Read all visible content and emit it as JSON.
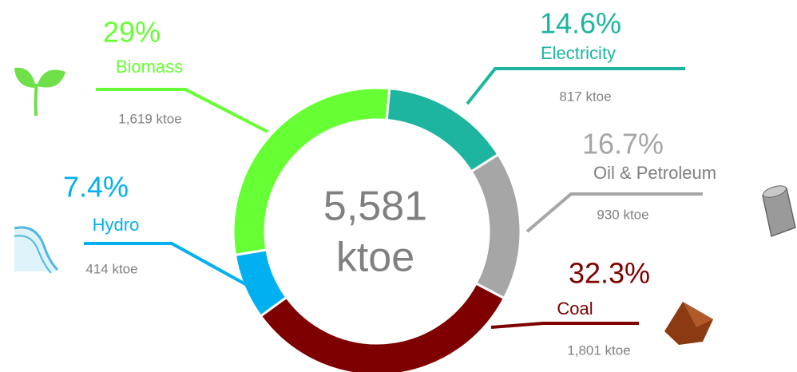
{
  "chart_data": {
    "type": "donut",
    "categories": [
      "Electricity",
      "Oil & Petroleum",
      "Coal",
      "Hydro",
      "Biomass"
    ],
    "values": [
      14.6,
      16.7,
      32.3,
      7.4,
      29
    ],
    "value_labels": [
      "14.6%",
      "16.7%",
      "32.3%",
      "7.4%",
      "29%"
    ],
    "amount_labels": [
      "817 ktoe",
      "930 ktoe",
      "1,801 ktoe",
      "414 ktoe",
      "1,619 ktoe"
    ],
    "colors": [
      "#1db5a0",
      "#a6a6a6",
      "#7f0000",
      "#00b0f0",
      "#66ff33"
    ],
    "center_label": "5,581",
    "center_unit": "ktoe"
  }
}
